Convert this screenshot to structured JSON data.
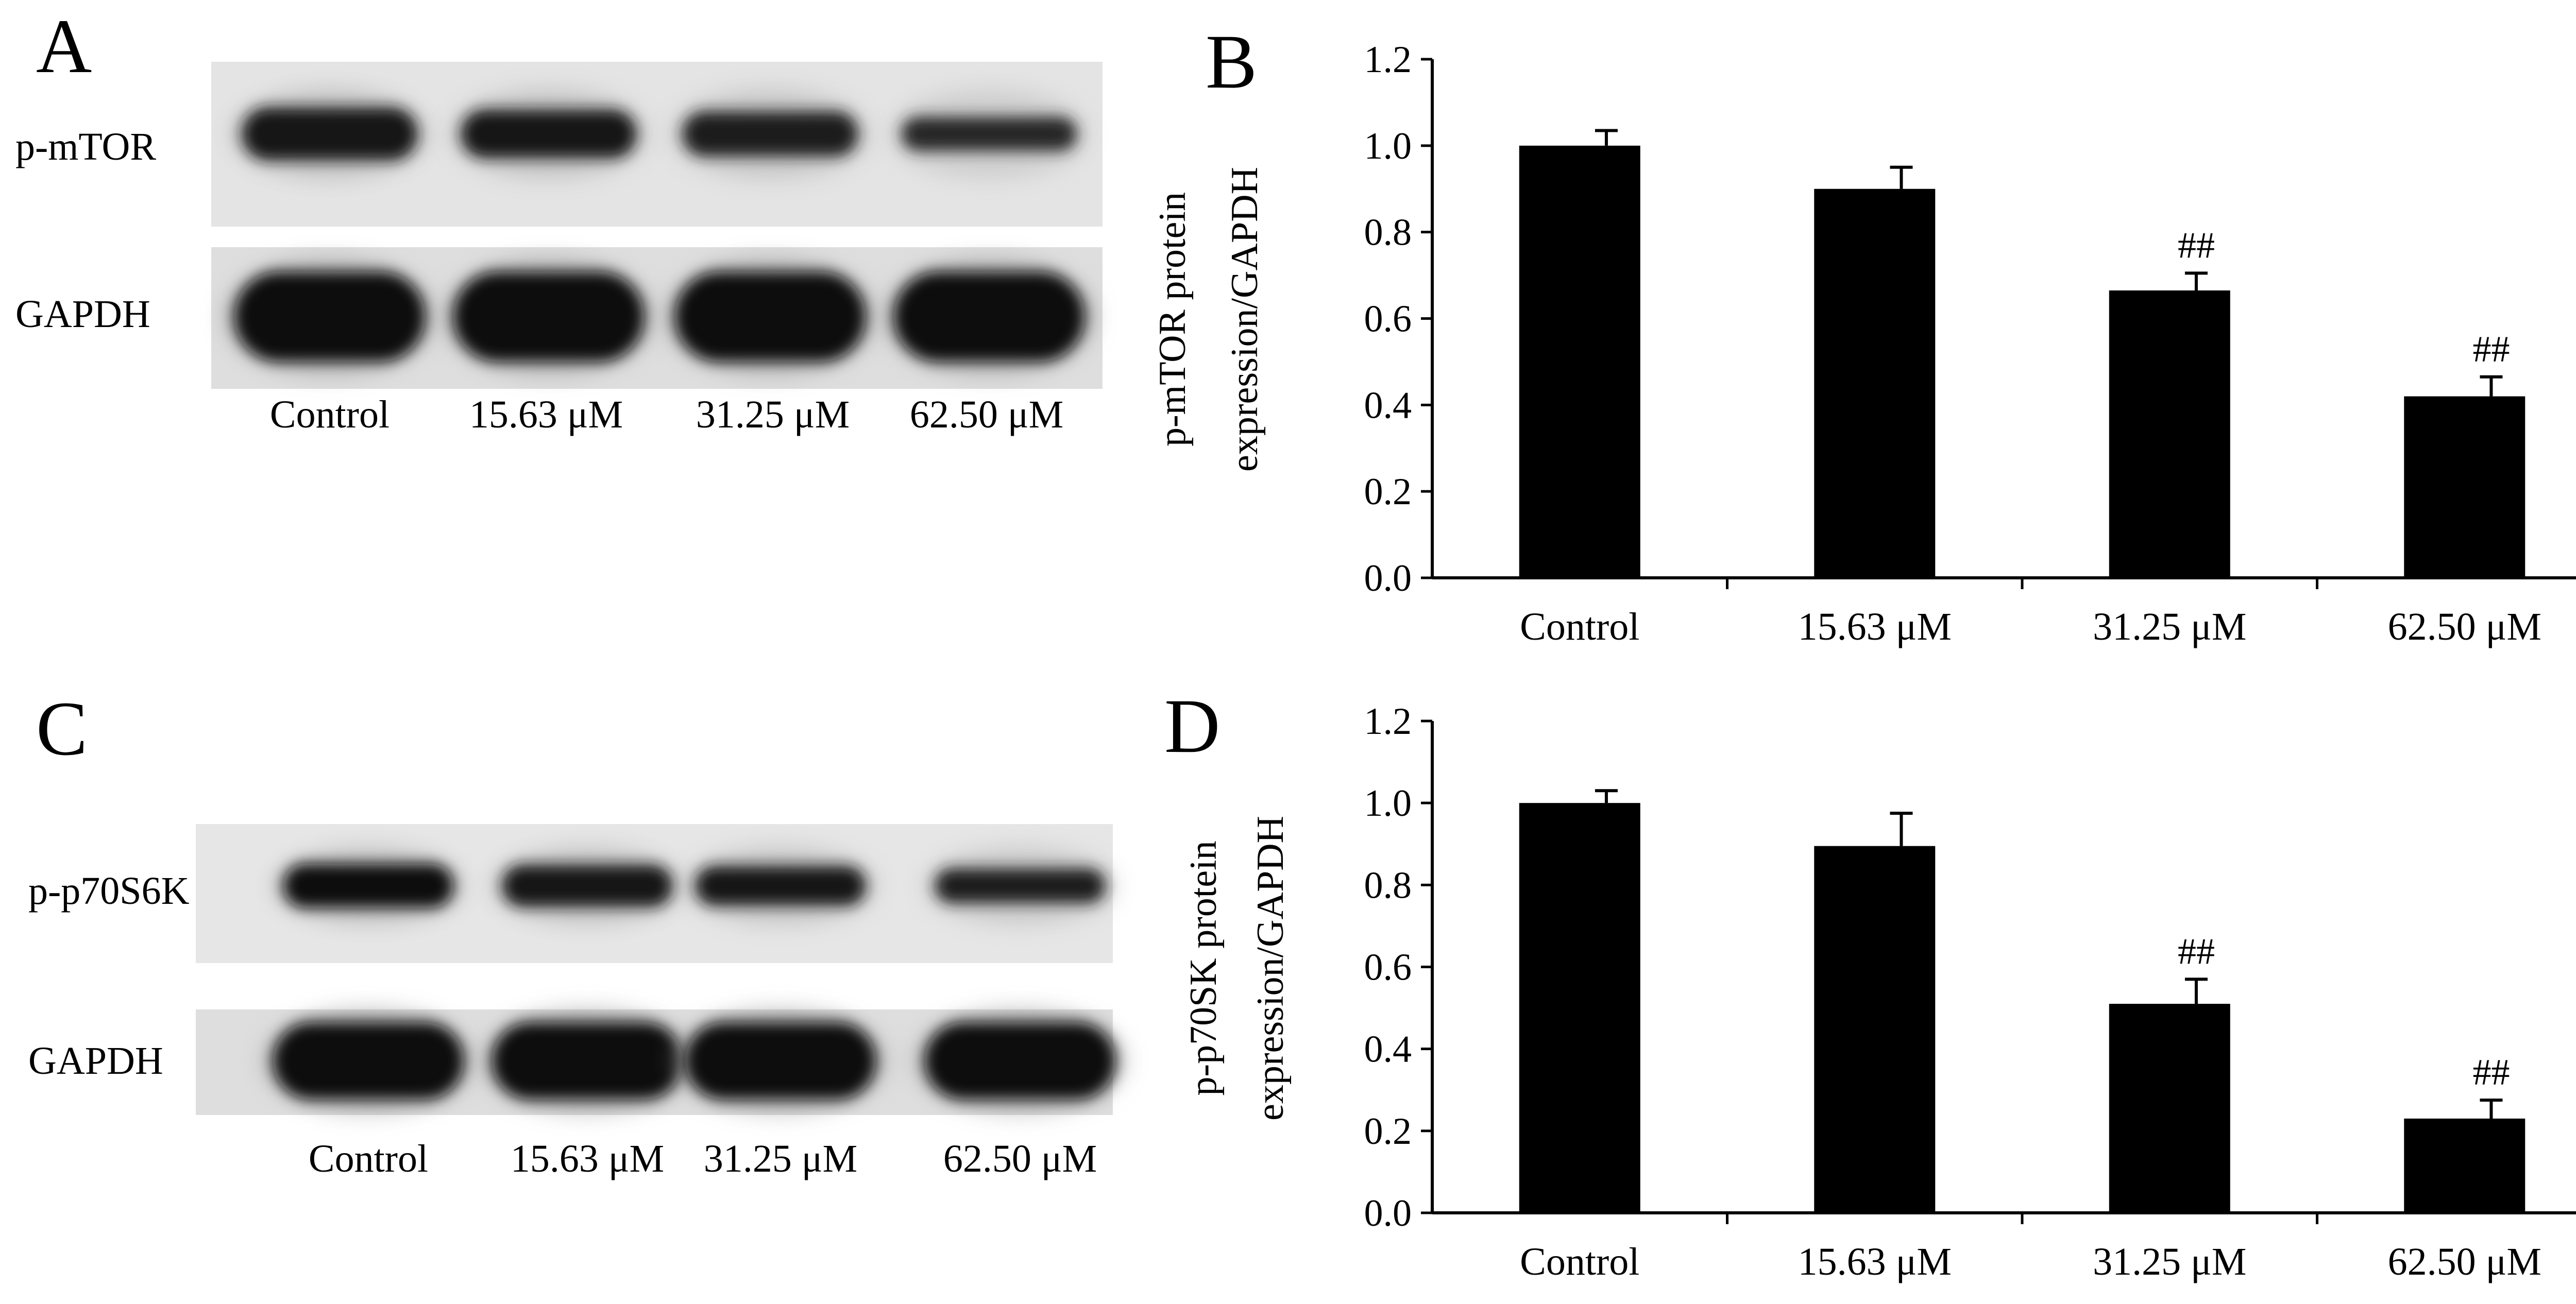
{
  "panels": {
    "A": {
      "letter": "A",
      "blot_rows": [
        "p-mTOR",
        "GAPDH"
      ],
      "lanes": [
        "Control",
        "15.63 μM",
        "31.25 μM",
        "62.50 μM"
      ],
      "band_intensity": {
        "p-mTOR": [
          0.85,
          0.78,
          0.72,
          0.55
        ],
        "GAPDH": [
          1.0,
          1.0,
          1.0,
          1.0
        ]
      }
    },
    "C": {
      "letter": "C",
      "blot_rows": [
        "p-p70S6K",
        "GAPDH"
      ],
      "lanes": [
        "Control",
        "15.63 μM",
        "31.25 μM",
        "62.50 μM"
      ],
      "band_intensity": {
        "p-p70S6K": [
          0.9,
          0.85,
          0.8,
          0.7
        ],
        "GAPDH": [
          1.0,
          1.0,
          1.0,
          1.0
        ]
      }
    }
  },
  "chart_data": [
    {
      "panel": "B",
      "letter": "B",
      "type": "bar",
      "categories": [
        "Control",
        "15.63 μM",
        "31.25 μM",
        "62.50 μM"
      ],
      "values": [
        1.0,
        0.9,
        0.665,
        0.42
      ],
      "errors": [
        0.035,
        0.05,
        0.04,
        0.045
      ],
      "annotations": [
        "",
        "",
        "##",
        "##"
      ],
      "ylabel_lines": [
        "p-mTOR protein",
        "expression/GAPDH"
      ],
      "xlabel": "",
      "yticks": [
        "0.0",
        "0.2",
        "0.4",
        "0.6",
        "0.8",
        "1.0",
        "1.2"
      ],
      "ylim": [
        0,
        1.2
      ],
      "grid": false,
      "bar_color": "#000000"
    },
    {
      "panel": "D",
      "letter": "D",
      "type": "bar",
      "categories": [
        "Control",
        "15.63 μM",
        "31.25 μM",
        "62.50 μM"
      ],
      "values": [
        1.0,
        0.895,
        0.51,
        0.23
      ],
      "errors": [
        0.03,
        0.08,
        0.06,
        0.045
      ],
      "annotations": [
        "",
        "",
        "##",
        "##"
      ],
      "ylabel_lines": [
        "p-p70SK protein",
        "expression/GAPDH"
      ],
      "xlabel": "",
      "yticks": [
        "0.0",
        "0.2",
        "0.4",
        "0.6",
        "0.8",
        "1.0",
        "1.2"
      ],
      "ylim": [
        0,
        1.2
      ],
      "grid": false,
      "bar_color": "#000000"
    }
  ]
}
